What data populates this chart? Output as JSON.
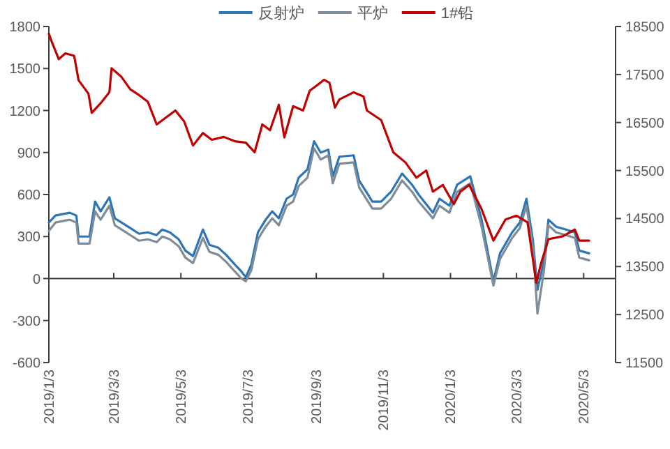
{
  "chart_data": {
    "type": "line",
    "x": [
      "2019-01-03",
      "2019-01-09",
      "2019-01-22",
      "2019-01-28",
      "2019-01-30",
      "2019-02-09",
      "2019-02-14",
      "2019-02-19",
      "2019-02-27",
      "2019-03-04",
      "2019-03-14",
      "2019-03-20",
      "2019-03-26",
      "2019-04-03",
      "2019-04-11",
      "2019-04-16",
      "2019-04-23",
      "2019-05-01",
      "2019-05-07",
      "2019-05-14",
      "2019-05-23",
      "2019-05-29",
      "2019-06-06",
      "2019-06-13",
      "2019-06-21",
      "2019-06-27",
      "2019-07-01",
      "2019-07-06",
      "2019-07-12",
      "2019-07-19",
      "2019-07-25",
      "2019-07-31",
      "2019-08-07",
      "2019-08-13",
      "2019-08-18",
      "2019-08-26",
      "2019-09-01",
      "2019-09-07",
      "2019-09-14",
      "2019-09-18",
      "2019-09-24",
      "2019-10-07",
      "2019-10-12",
      "2019-10-24",
      "2019-11-01",
      "2019-11-10",
      "2019-11-20",
      "2019-11-29",
      "2019-12-05",
      "2019-12-18",
      "2019-12-24",
      "2020-01-02",
      "2020-01-09",
      "2020-01-21",
      "2020-01-31",
      "2020-02-11",
      "2020-02-17",
      "2020-02-28",
      "2020-03-06",
      "2020-03-12",
      "2020-03-18",
      "2020-03-22",
      "2020-03-28",
      "2020-04-01",
      "2020-04-08",
      "2020-04-17",
      "2020-04-25",
      "2020-04-29",
      "2020-05-08"
    ],
    "series": [
      {
        "name": "反射炉",
        "color": "#2e75b6",
        "values": [
          400,
          450,
          470,
          450,
          300,
          300,
          550,
          480,
          580,
          430,
          380,
          350,
          320,
          330,
          310,
          350,
          330,
          280,
          200,
          160,
          350,
          240,
          220,
          170,
          100,
          50,
          10,
          100,
          330,
          420,
          480,
          430,
          570,
          600,
          720,
          780,
          980,
          900,
          920,
          730,
          870,
          880,
          700,
          550,
          550,
          620,
          750,
          670,
          600,
          470,
          570,
          520,
          670,
          730,
          430,
          -20,
          180,
          330,
          400,
          570,
          270,
          -80,
          130,
          420,
          370,
          350,
          330,
          200,
          180
        ]
      },
      {
        "name": "平炉",
        "color": "#7f8c99",
        "values": [
          340,
          400,
          420,
          400,
          250,
          250,
          480,
          420,
          520,
          380,
          330,
          300,
          270,
          280,
          260,
          300,
          280,
          230,
          150,
          110,
          290,
          190,
          170,
          120,
          50,
          0,
          -20,
          60,
          280,
          370,
          430,
          380,
          520,
          550,
          660,
          720,
          930,
          850,
          880,
          680,
          820,
          830,
          650,
          500,
          500,
          570,
          700,
          620,
          550,
          430,
          520,
          470,
          620,
          680,
          380,
          -50,
          140,
          290,
          360,
          520,
          220,
          -250,
          60,
          380,
          330,
          310,
          290,
          150,
          130
        ]
      },
      {
        "name": "1#铅",
        "color": "#c00000",
        "axis": "y2",
        "x": [
          "2019-01-03",
          "2019-01-06",
          "2019-01-12",
          "2019-01-18",
          "2019-01-26",
          "2019-01-30",
          "2019-02-08",
          "2019-02-11",
          "2019-02-19",
          "2019-02-27",
          "2019-03-01",
          "2019-03-10",
          "2019-03-18",
          "2019-03-26",
          "2019-04-03",
          "2019-04-11",
          "2019-04-18",
          "2019-04-28",
          "2019-05-06",
          "2019-05-14",
          "2019-05-23",
          "2019-05-31",
          "2019-06-11",
          "2019-06-21",
          "2019-07-01",
          "2019-07-09",
          "2019-07-16",
          "2019-07-23",
          "2019-07-31",
          "2019-08-05",
          "2019-08-13",
          "2019-08-22",
          "2019-08-28",
          "2019-09-04",
          "2019-09-10",
          "2019-09-15",
          "2019-09-20",
          "2019-09-24",
          "2019-10-07",
          "2019-10-16",
          "2019-10-19",
          "2019-11-01",
          "2019-11-12",
          "2019-11-23",
          "2019-12-03",
          "2019-12-12",
          "2019-12-18",
          "2019-12-27",
          "2020-01-06",
          "2020-01-12",
          "2020-01-20",
          "2020-01-31",
          "2020-02-11",
          "2020-02-22",
          "2020-03-03",
          "2020-03-13",
          "2020-03-18",
          "2020-03-21",
          "2020-03-25",
          "2020-04-01",
          "2020-04-14",
          "2020-04-25",
          "2020-04-29",
          "2020-05-08"
        ],
        "values": [
          18350,
          18160,
          17820,
          17940,
          17890,
          17380,
          17100,
          16700,
          16900,
          17130,
          17630,
          17450,
          17190,
          17070,
          16930,
          16460,
          16580,
          16750,
          16520,
          16020,
          16280,
          16140,
          16200,
          16110,
          16080,
          15880,
          16460,
          16340,
          16870,
          16190,
          16840,
          16750,
          17160,
          17280,
          17390,
          17330,
          16810,
          16980,
          17130,
          17040,
          16750,
          16550,
          15880,
          15670,
          15350,
          15500,
          15060,
          15200,
          14800,
          15060,
          15200,
          14710,
          14040,
          14480,
          14560,
          14420,
          13630,
          13160,
          13540,
          14070,
          14130,
          14270,
          14040,
          14040
        ]
      }
    ],
    "xlim": [
      "2019-01-03",
      "2020-06-01"
    ],
    "xticks": [
      {
        "value": "2019-01-03",
        "label": "2019/1/3"
      },
      {
        "value": "2019-03-03",
        "label": "2019/3/3"
      },
      {
        "value": "2019-05-03",
        "label": "2019/5/3"
      },
      {
        "value": "2019-07-03",
        "label": "2019/7/3"
      },
      {
        "value": "2019-09-03",
        "label": "2019/9/3"
      },
      {
        "value": "2019-11-03",
        "label": "2019/11/3"
      },
      {
        "value": "2020-01-03",
        "label": "2020/1/3"
      },
      {
        "value": "2020-03-03",
        "label": "2020/3/3"
      },
      {
        "value": "2020-05-03",
        "label": "2020/5/3"
      }
    ],
    "ylim": [
      -600,
      1800
    ],
    "yticks": [
      -600,
      -300,
      0,
      300,
      600,
      900,
      1200,
      1500,
      1800
    ],
    "y2lim": [
      11500,
      18500
    ],
    "y2ticks": [
      11500,
      12500,
      13500,
      14500,
      15500,
      16500,
      17500,
      18500
    ],
    "legend": "top"
  }
}
